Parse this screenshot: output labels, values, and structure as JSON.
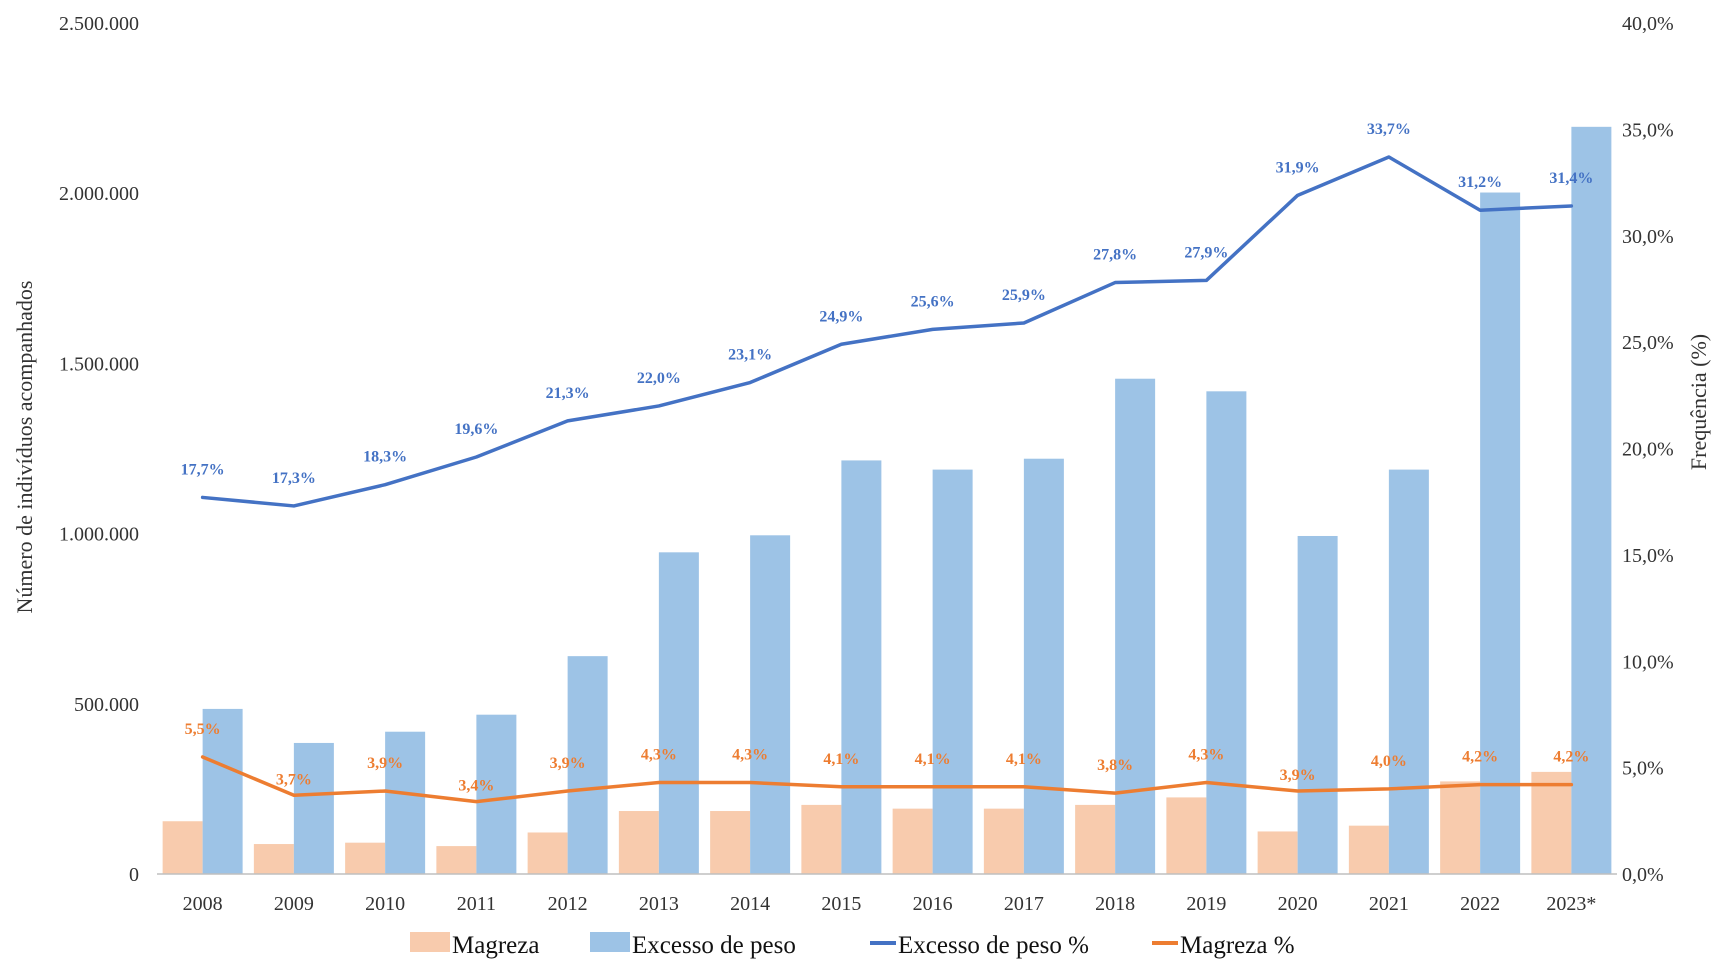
{
  "chart_data": {
    "type": "bar",
    "categories": [
      "2008",
      "2009",
      "2010",
      "2011",
      "2012",
      "2013",
      "2014",
      "2015",
      "2016",
      "2017",
      "2018",
      "2019",
      "2020",
      "2021",
      "2022",
      "2023*"
    ],
    "bar_series": [
      {
        "name": "Magreza",
        "color": "#F8CBAD",
        "values": [
          155000,
          88000,
          92000,
          82000,
          122000,
          185000,
          185000,
          203000,
          192000,
          192000,
          203000,
          225000,
          125000,
          142000,
          272000,
          300000
        ]
      },
      {
        "name": "Excesso de peso",
        "color": "#9DC3E6",
        "values": [
          485000,
          385000,
          418000,
          468000,
          640000,
          945000,
          995000,
          1215000,
          1188000,
          1220000,
          1455000,
          1418000,
          993000,
          1188000,
          2002000,
          2195000
        ]
      }
    ],
    "line_series": [
      {
        "name": "Excesso de peso %",
        "color": "#4472C4",
        "values": [
          17.7,
          17.3,
          18.3,
          19.6,
          21.3,
          22.0,
          23.1,
          24.9,
          25.6,
          25.9,
          27.8,
          27.9,
          31.9,
          33.7,
          31.2,
          31.4
        ],
        "labels": [
          "17,7%",
          "17,3%",
          "18,3%",
          "19,6%",
          "21,3%",
          "22,0%",
          "23,1%",
          "24,9%",
          "25,6%",
          "25,9%",
          "27,8%",
          "27,9%",
          "31,9%",
          "33,7%",
          "31,2%",
          "31,4%"
        ]
      },
      {
        "name": "Magreza %",
        "color": "#ED7D31",
        "values": [
          5.5,
          3.7,
          3.9,
          3.4,
          3.9,
          4.3,
          4.3,
          4.1,
          4.1,
          4.1,
          3.8,
          4.3,
          3.9,
          4.0,
          4.2,
          4.2
        ],
        "labels": [
          "5,5%",
          "3,7%",
          "3,9%",
          "3,4%",
          "3,9%",
          "4,3%",
          "4,3%",
          "4,1%",
          "4,1%",
          "4,1%",
          "3,8%",
          "4,3%",
          "3,9%",
          "4,0%",
          "4,2%",
          "4,2%"
        ]
      }
    ],
    "y_left": {
      "label": "Número de indivíduos acompanhados",
      "range": [
        0,
        2500000
      ],
      "ticks": [
        0,
        500000,
        1000000,
        1500000,
        2000000,
        2500000
      ],
      "tick_labels": [
        "0",
        "500.000",
        "1.000.000",
        "1.500.000",
        "2.000.000",
        "2.500.000"
      ]
    },
    "y_right": {
      "label": "Frequência (%)",
      "range": [
        0,
        40
      ],
      "ticks": [
        0,
        5,
        10,
        15,
        20,
        25,
        30,
        35,
        40
      ],
      "tick_labels": [
        "0,0%",
        "5,0%",
        "10,0%",
        "15,0%",
        "20,0%",
        "25,0%",
        "30,0%",
        "35,0%",
        "40,0%"
      ]
    },
    "grid": false,
    "legend": {
      "position": "bottom",
      "items": [
        {
          "label": "Magreza",
          "kind": "bar",
          "color": "#F8CBAD"
        },
        {
          "label": "Excesso de peso",
          "kind": "bar",
          "color": "#9DC3E6"
        },
        {
          "label": "Excesso de peso %",
          "kind": "line",
          "color": "#4472C4"
        },
        {
          "label": "Magreza %",
          "kind": "line",
          "color": "#ED7D31"
        }
      ]
    }
  }
}
